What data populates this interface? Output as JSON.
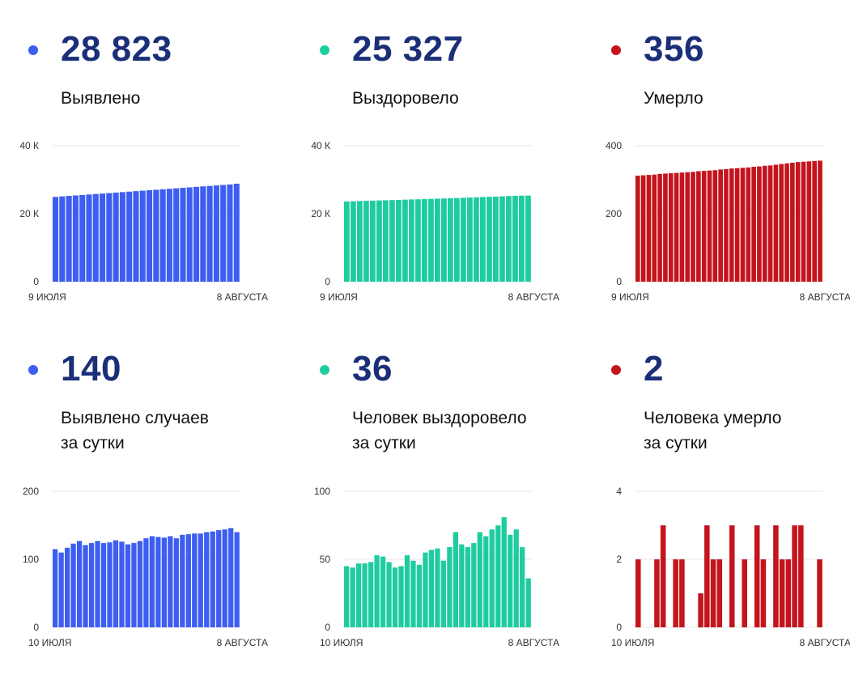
{
  "colors": {
    "blue": "#3d5ef0",
    "green": "#1ecca0",
    "red": "#c4141c",
    "big_number": "#1b2f78",
    "grid": "#e6e6e6"
  },
  "panels": [
    {
      "value": "28 823",
      "label_lines": [
        "Выявлено"
      ],
      "color": "blue"
    },
    {
      "value": "25 327",
      "label_lines": [
        "Выздоровело"
      ],
      "color": "green"
    },
    {
      "value": "356",
      "label_lines": [
        "Умерло"
      ],
      "color": "red"
    },
    {
      "value": "140",
      "label_lines": [
        "Выявлено случаев",
        "за сутки"
      ],
      "color": "blue"
    },
    {
      "value": "36",
      "label_lines": [
        "Человек выздоровело",
        "за сутки"
      ],
      "color": "green"
    },
    {
      "value": "2",
      "label_lines": [
        "Человека умерло",
        "за сутки"
      ],
      "color": "red"
    }
  ],
  "chart_data": [
    {
      "type": "bar",
      "color": "blue",
      "ylim": [
        0,
        40000
      ],
      "yticks": [
        0,
        20000,
        40000
      ],
      "ytick_labels": [
        "0",
        "20 К",
        "40 К"
      ],
      "x_start_label": "9 ИЮЛЯ",
      "x_end_label": "8 АВГУСТА",
      "values": [
        24950,
        25090,
        25230,
        25370,
        25510,
        25650,
        25790,
        25930,
        26070,
        26210,
        26350,
        26490,
        26630,
        26770,
        26910,
        27050,
        27190,
        27330,
        27470,
        27610,
        27750,
        27890,
        28030,
        28170,
        28310,
        28450,
        28590,
        28823
      ]
    },
    {
      "type": "bar",
      "color": "green",
      "ylim": [
        0,
        40000
      ],
      "yticks": [
        0,
        20000,
        40000
      ],
      "ytick_labels": [
        "0",
        "20 К",
        "40 К"
      ],
      "x_start_label": "9 ИЮЛЯ",
      "x_end_label": "8 АВГУСТА",
      "values": [
        23600,
        23670,
        23730,
        23790,
        23840,
        23900,
        23950,
        24010,
        24070,
        24130,
        24190,
        24250,
        24310,
        24370,
        24430,
        24490,
        24560,
        24620,
        24690,
        24760,
        24830,
        24900,
        24970,
        25040,
        25110,
        25180,
        25250,
        25290,
        25327
      ]
    },
    {
      "type": "bar",
      "color": "red",
      "ylim": [
        0,
        400
      ],
      "yticks": [
        0,
        200,
        400
      ],
      "ytick_labels": [
        "0",
        "200",
        "400"
      ],
      "x_start_label": "9 ИЮЛЯ",
      "x_end_label": "8 АВГУСТА",
      "values": [
        312,
        313,
        314,
        315,
        317,
        318,
        319,
        320,
        321,
        322,
        323,
        325,
        326,
        327,
        328,
        330,
        331,
        333,
        334,
        335,
        336,
        338,
        339,
        341,
        342,
        344,
        346,
        348,
        350,
        352,
        353,
        354,
        355,
        356
      ]
    },
    {
      "type": "bar",
      "color": "blue",
      "ylim": [
        0,
        200
      ],
      "yticks": [
        0,
        100,
        200
      ],
      "ytick_labels": [
        "0",
        "100",
        "200"
      ],
      "x_start_label": "10 ИЮЛЯ",
      "x_end_label": "8 АВГУСТА",
      "values": [
        115,
        110,
        117,
        123,
        127,
        121,
        124,
        127,
        124,
        125,
        128,
        126,
        122,
        124,
        127,
        131,
        134,
        133,
        132,
        134,
        131,
        136,
        137,
        138,
        138,
        140,
        141,
        143,
        144,
        146,
        140
      ]
    },
    {
      "type": "bar",
      "color": "green",
      "ylim": [
        0,
        100
      ],
      "yticks": [
        0,
        50,
        100
      ],
      "ytick_labels": [
        "0",
        "50",
        "100"
      ],
      "x_start_label": "10 ИЮЛЯ",
      "x_end_label": "8 АВГУСТА",
      "values": [
        45,
        44,
        47,
        47,
        48,
        53,
        52,
        48,
        44,
        45,
        53,
        49,
        46,
        55,
        57,
        58,
        49,
        59,
        70,
        61,
        59,
        62,
        70,
        67,
        72,
        75,
        81,
        68,
        72,
        59,
        36
      ]
    },
    {
      "type": "bar",
      "color": "red",
      "ylim": [
        0,
        4
      ],
      "yticks": [
        0,
        2,
        4
      ],
      "ytick_labels": [
        "0",
        "2",
        "4"
      ],
      "x_start_label": "10 ИЮЛЯ",
      "x_end_label": "8 АВГУСТА",
      "values": [
        2,
        0,
        0,
        2,
        3,
        0,
        2,
        2,
        0,
        0,
        1,
        3,
        2,
        2,
        0,
        3,
        0,
        2,
        0,
        3,
        2,
        0,
        3,
        2,
        2,
        3,
        3,
        0,
        0,
        2
      ]
    }
  ]
}
